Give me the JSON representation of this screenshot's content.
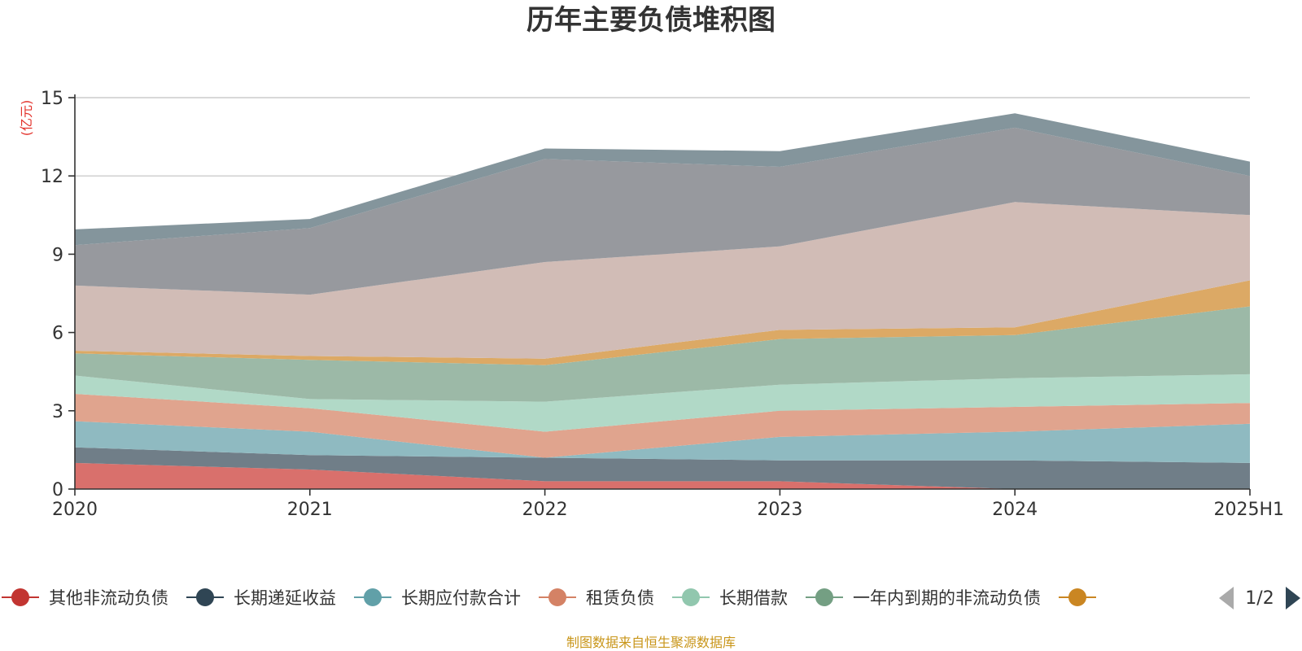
{
  "chart_data": {
    "type": "area",
    "stacked": true,
    "title": "历年主要负债堆积图",
    "unit_label": "(亿元)",
    "categories": [
      "2020",
      "2021",
      "2022",
      "2023",
      "2024",
      "2025H1"
    ],
    "ylim": [
      0,
      15
    ],
    "yticks": [
      "0",
      "3",
      "6",
      "9",
      "12",
      "15"
    ],
    "grid": true,
    "series": [
      {
        "name": "其他非流动负债",
        "color": "#d9706c",
        "legend_color": "#c23531",
        "values": [
          1.0,
          0.75,
          0.3,
          0.3,
          0.0,
          0.0
        ]
      },
      {
        "name": "长期递延收益",
        "color": "#707e88",
        "legend_color": "#2f4554",
        "values": [
          0.6,
          0.55,
          0.9,
          0.8,
          1.1,
          1.0
        ]
      },
      {
        "name": "长期应付款合计",
        "color": "#8fbac1",
        "legend_color": "#61a0a8",
        "values": [
          1.0,
          0.9,
          0.0,
          0.9,
          1.1,
          1.5
        ]
      },
      {
        "name": "租赁负债",
        "color": "#e0a48e",
        "legend_color": "#d48265",
        "values": [
          1.05,
          0.9,
          1.0,
          1.0,
          0.95,
          0.8
        ]
      },
      {
        "name": "长期借款",
        "color": "#b1d9c7",
        "legend_color": "#91c7ae",
        "values": [
          0.7,
          0.35,
          1.15,
          1.0,
          1.1,
          1.1
        ]
      },
      {
        "name": "一年内到期的非流动负债",
        "color": "#9cb9a7",
        "legend_color": "#749f83",
        "values": [
          0.85,
          1.5,
          1.4,
          1.75,
          1.65,
          2.6
        ]
      },
      {
        "name": "",
        "color": "#dca965",
        "legend_color": "#ca8622",
        "values": [
          0.1,
          0.15,
          0.25,
          0.35,
          0.3,
          1.0
        ]
      },
      {
        "name": "",
        "color": "#d1bcb6",
        "legend_color": "#bda29a",
        "values": [
          2.5,
          2.35,
          3.7,
          3.2,
          4.8,
          2.5
        ]
      },
      {
        "name": "",
        "color": "#97999e",
        "legend_color": "#6e7074",
        "values": [
          1.55,
          2.55,
          3.95,
          3.05,
          2.85,
          1.5
        ]
      },
      {
        "name": "",
        "color": "#84959c",
        "legend_color": "#546570",
        "values": [
          0.6,
          0.35,
          0.4,
          0.6,
          0.55,
          0.55
        ]
      }
    ]
  },
  "legend": {
    "page_indicator": "1/2"
  },
  "footer": {
    "source": "制图数据来自恒生聚源数据库"
  }
}
